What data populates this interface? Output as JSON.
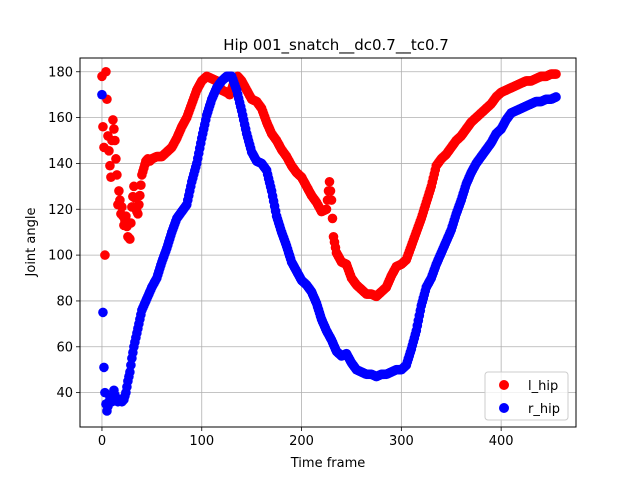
{
  "chart_data": {
    "type": "scatter",
    "title": "Hip 001_snatch__dc0.7__tc0.7",
    "xlabel": "Time frame",
    "ylabel": "Joint angle",
    "xlim": [
      -22,
      475
    ],
    "ylim": [
      25,
      186
    ],
    "xticks": [
      0,
      100,
      200,
      300,
      400
    ],
    "yticks": [
      40,
      60,
      80,
      100,
      120,
      140,
      160,
      180
    ],
    "grid": true,
    "legend_position": "lower-right",
    "series": [
      {
        "name": "l_hip",
        "color": "#ff0000",
        "points": [
          [
            0,
            178
          ],
          [
            1,
            156
          ],
          [
            2,
            147
          ],
          [
            3,
            100
          ],
          [
            4,
            180
          ],
          [
            5,
            168
          ],
          [
            6,
            152
          ],
          [
            8,
            139
          ],
          [
            9,
            134
          ],
          [
            10,
            150
          ],
          [
            11,
            159
          ],
          [
            12,
            155
          ],
          [
            13,
            150
          ],
          [
            14,
            142
          ],
          [
            15,
            135
          ],
          [
            16,
            122
          ],
          [
            17,
            128
          ],
          [
            18,
            124
          ],
          [
            19,
            118
          ],
          [
            20,
            121
          ],
          [
            22,
            113
          ],
          [
            24,
            117
          ],
          [
            26,
            108
          ],
          [
            28,
            107
          ],
          [
            30,
            121
          ],
          [
            32,
            130
          ],
          [
            34,
            120
          ],
          [
            36,
            118
          ],
          [
            38,
            126
          ],
          [
            40,
            135
          ],
          [
            42,
            138
          ],
          [
            44,
            141
          ],
          [
            46,
            142
          ],
          [
            48,
            141
          ],
          [
            50,
            142
          ],
          [
            55,
            143
          ],
          [
            60,
            143
          ],
          [
            65,
            145
          ],
          [
            70,
            147
          ],
          [
            75,
            151
          ],
          [
            80,
            156
          ],
          [
            85,
            160
          ],
          [
            90,
            166
          ],
          [
            95,
            172
          ],
          [
            100,
            176
          ],
          [
            105,
            178
          ],
          [
            110,
            177
          ],
          [
            115,
            176
          ],
          [
            120,
            172
          ],
          [
            125,
            171
          ],
          [
            128,
            170
          ],
          [
            132,
            175
          ],
          [
            136,
            178
          ],
          [
            140,
            176
          ],
          [
            145,
            172
          ],
          [
            150,
            168
          ],
          [
            155,
            167
          ],
          [
            160,
            164
          ],
          [
            165,
            158
          ],
          [
            170,
            153
          ],
          [
            175,
            150
          ],
          [
            180,
            146
          ],
          [
            185,
            143
          ],
          [
            190,
            139
          ],
          [
            195,
            136
          ],
          [
            200,
            134
          ],
          [
            205,
            130
          ],
          [
            210,
            126
          ],
          [
            215,
            123
          ],
          [
            220,
            119
          ],
          [
            225,
            120
          ],
          [
            228,
            132
          ],
          [
            230,
            124
          ],
          [
            232,
            108
          ],
          [
            235,
            101
          ],
          [
            240,
            97
          ],
          [
            245,
            96
          ],
          [
            250,
            90
          ],
          [
            255,
            87
          ],
          [
            260,
            85
          ],
          [
            265,
            83
          ],
          [
            270,
            83
          ],
          [
            275,
            82
          ],
          [
            280,
            84
          ],
          [
            285,
            86
          ],
          [
            290,
            91
          ],
          [
            295,
            95
          ],
          [
            300,
            96
          ],
          [
            305,
            98
          ],
          [
            310,
            104
          ],
          [
            315,
            110
          ],
          [
            320,
            116
          ],
          [
            325,
            123
          ],
          [
            330,
            130
          ],
          [
            335,
            139
          ],
          [
            340,
            142
          ],
          [
            345,
            144
          ],
          [
            350,
            147
          ],
          [
            355,
            150
          ],
          [
            360,
            152
          ],
          [
            365,
            155
          ],
          [
            370,
            158
          ],
          [
            375,
            160
          ],
          [
            380,
            162
          ],
          [
            385,
            164
          ],
          [
            390,
            166
          ],
          [
            395,
            169
          ],
          [
            400,
            171
          ],
          [
            405,
            172
          ],
          [
            410,
            173
          ],
          [
            415,
            174
          ],
          [
            420,
            175
          ],
          [
            425,
            176
          ],
          [
            430,
            176
          ],
          [
            435,
            177
          ],
          [
            440,
            178
          ],
          [
            445,
            178
          ],
          [
            450,
            179
          ],
          [
            455,
            179
          ]
        ]
      },
      {
        "name": "r_hip",
        "color": "#0000ff",
        "points": [
          [
            0,
            170
          ],
          [
            1,
            75
          ],
          [
            2,
            51
          ],
          [
            3,
            40
          ],
          [
            4,
            35
          ],
          [
            5,
            32
          ],
          [
            6,
            34
          ],
          [
            8,
            38
          ],
          [
            10,
            36
          ],
          [
            12,
            41
          ],
          [
            14,
            37
          ],
          [
            16,
            36
          ],
          [
            18,
            37
          ],
          [
            20,
            36
          ],
          [
            22,
            37
          ],
          [
            24,
            40
          ],
          [
            26,
            45
          ],
          [
            28,
            49
          ],
          [
            30,
            55
          ],
          [
            32,
            60
          ],
          [
            35,
            66
          ],
          [
            38,
            72
          ],
          [
            40,
            76
          ],
          [
            45,
            81
          ],
          [
            50,
            86
          ],
          [
            55,
            90
          ],
          [
            60,
            97
          ],
          [
            65,
            103
          ],
          [
            70,
            110
          ],
          [
            75,
            116
          ],
          [
            80,
            119
          ],
          [
            85,
            122
          ],
          [
            90,
            132
          ],
          [
            95,
            140
          ],
          [
            100,
            151
          ],
          [
            105,
            161
          ],
          [
            110,
            168
          ],
          [
            115,
            173
          ],
          [
            120,
            176
          ],
          [
            125,
            178
          ],
          [
            130,
            178
          ],
          [
            135,
            172
          ],
          [
            140,
            163
          ],
          [
            145,
            153
          ],
          [
            150,
            145
          ],
          [
            155,
            141
          ],
          [
            160,
            140
          ],
          [
            165,
            137
          ],
          [
            170,
            128
          ],
          [
            175,
            117
          ],
          [
            180,
            110
          ],
          [
            185,
            104
          ],
          [
            190,
            97
          ],
          [
            195,
            93
          ],
          [
            200,
            89
          ],
          [
            205,
            87
          ],
          [
            210,
            84
          ],
          [
            215,
            79
          ],
          [
            220,
            72
          ],
          [
            225,
            67
          ],
          [
            230,
            63
          ],
          [
            235,
            58
          ],
          [
            240,
            56
          ],
          [
            245,
            57
          ],
          [
            250,
            53
          ],
          [
            255,
            50
          ],
          [
            260,
            49
          ],
          [
            265,
            48
          ],
          [
            270,
            48
          ],
          [
            275,
            47
          ],
          [
            280,
            48
          ],
          [
            285,
            48
          ],
          [
            290,
            49
          ],
          [
            295,
            50
          ],
          [
            300,
            50
          ],
          [
            305,
            52
          ],
          [
            310,
            59
          ],
          [
            315,
            67
          ],
          [
            320,
            78
          ],
          [
            325,
            86
          ],
          [
            330,
            90
          ],
          [
            335,
            96
          ],
          [
            340,
            101
          ],
          [
            345,
            106
          ],
          [
            350,
            111
          ],
          [
            355,
            118
          ],
          [
            360,
            124
          ],
          [
            365,
            131
          ],
          [
            370,
            136
          ],
          [
            375,
            140
          ],
          [
            380,
            143
          ],
          [
            385,
            146
          ],
          [
            390,
            149
          ],
          [
            395,
            153
          ],
          [
            400,
            155
          ],
          [
            405,
            159
          ],
          [
            410,
            162
          ],
          [
            415,
            163
          ],
          [
            420,
            164
          ],
          [
            425,
            165
          ],
          [
            430,
            166
          ],
          [
            435,
            167
          ],
          [
            440,
            167
          ],
          [
            445,
            168
          ],
          [
            450,
            168
          ],
          [
            455,
            169
          ]
        ]
      }
    ]
  }
}
